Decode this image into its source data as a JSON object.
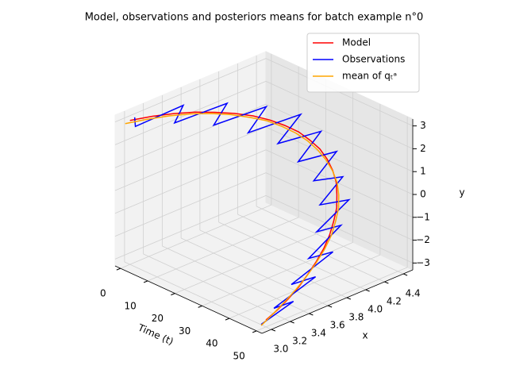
{
  "chart_data": {
    "type": "line3d",
    "title": "Model, observations and posteriors means for batch example n°0",
    "tlabel": "Time (t)",
    "xlabel": "x",
    "ylabel": "y",
    "time": [
      0,
      2,
      4,
      6,
      8,
      10,
      12,
      14,
      16,
      18,
      20,
      22,
      24,
      26,
      28,
      30,
      32,
      34,
      36,
      38,
      40,
      42,
      44,
      46,
      48,
      50
    ],
    "tlim": [
      -2,
      52
    ],
    "tticks": [
      0,
      10,
      20,
      30,
      40,
      50
    ],
    "xlim": [
      2.9,
      4.5
    ],
    "xticks": [
      {
        "value": 3,
        "label": "3.0"
      },
      {
        "value": 3.2,
        "label": "3.2"
      },
      {
        "value": 3.4,
        "label": "3.4"
      },
      {
        "value": 3.6,
        "label": "3.6"
      },
      {
        "value": 3.8,
        "label": "3.8"
      },
      {
        "value": 4,
        "label": "4.0"
      },
      {
        "value": 4.2,
        "label": "4.2"
      },
      {
        "value": 4.4,
        "label": "4.4"
      }
    ],
    "ylim": [
      -3.3,
      3.3
    ],
    "yticks": [
      {
        "value": -3,
        "label": "−3"
      },
      {
        "value": -2,
        "label": "−2"
      },
      {
        "value": -1,
        "label": "−1"
      },
      0,
      1,
      2,
      3
    ],
    "grid": true,
    "legend": "upper right",
    "series": [
      {
        "name": "Model",
        "color": "#ff0000",
        "x": [
          3.0,
          3.18,
          3.35,
          3.52,
          3.67,
          3.82,
          3.96,
          4.08,
          4.18,
          4.27,
          4.33,
          4.38,
          4.4,
          4.4,
          4.38,
          4.33,
          4.27,
          4.18,
          4.08,
          3.96,
          3.82,
          3.67,
          3.52,
          3.35,
          3.18,
          3.0
        ],
        "y": [
          3.0,
          2.98,
          2.91,
          2.79,
          2.63,
          2.43,
          2.19,
          1.91,
          1.61,
          1.28,
          0.93,
          0.56,
          0.19,
          -0.19,
          -0.56,
          -0.93,
          -1.28,
          -1.61,
          -1.91,
          -2.19,
          -2.43,
          -2.63,
          -2.79,
          -2.91,
          -2.98,
          -3.0
        ]
      },
      {
        "name": "Observations",
        "color": "#0000ff",
        "x": [
          3.05,
          3.0,
          3.45,
          3.3,
          3.8,
          3.6,
          4.1,
          3.85,
          4.35,
          4.05,
          4.45,
          4.15,
          4.5,
          4.2,
          4.45,
          4.15,
          4.4,
          4.0,
          4.2,
          3.8,
          4.0,
          3.5,
          3.7,
          3.2,
          3.35,
          2.95
        ],
        "y": [
          3.05,
          2.85,
          3.1,
          2.7,
          2.8,
          2.3,
          2.35,
          1.75,
          1.8,
          1.15,
          1.1,
          0.4,
          0.35,
          -0.3,
          -0.45,
          -1.05,
          -1.15,
          -1.75,
          -1.7,
          -2.35,
          -2.3,
          -2.75,
          -2.65,
          -3.05,
          -2.9,
          -3.1
        ]
      },
      {
        "name": "mean of qₜᵃ",
        "color": "#ffa500",
        "x": [
          2.95,
          3.12,
          3.3,
          3.47,
          3.63,
          3.78,
          3.92,
          4.05,
          4.15,
          4.24,
          4.31,
          4.36,
          4.39,
          4.4,
          4.39,
          4.35,
          4.29,
          4.2,
          4.1,
          3.97,
          3.82,
          3.66,
          3.49,
          3.31,
          3.13,
          2.95
        ],
        "y": [
          2.95,
          2.95,
          2.9,
          2.8,
          2.65,
          2.45,
          2.2,
          1.93,
          1.62,
          1.28,
          0.92,
          0.54,
          0.16,
          -0.22,
          -0.6,
          -0.97,
          -1.32,
          -1.65,
          -1.95,
          -2.23,
          -2.48,
          -2.68,
          -2.85,
          -2.98,
          -3.08,
          -3.15
        ]
      }
    ]
  }
}
